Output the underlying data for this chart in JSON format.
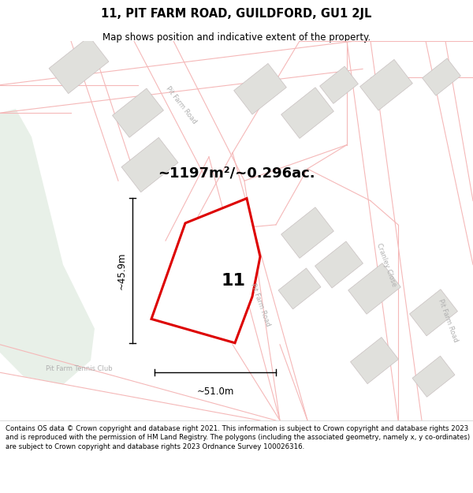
{
  "title": "11, PIT FARM ROAD, GUILDFORD, GU1 2JL",
  "subtitle": "Map shows position and indicative extent of the property.",
  "footer": "Contains OS data © Crown copyright and database right 2021. This information is subject to Crown copyright and database rights 2023 and is reproduced with the permission of HM Land Registry. The polygons (including the associated geometry, namely x, y co-ordinates) are subject to Crown copyright and database rights 2023 Ordnance Survey 100026316.",
  "area_text": "~1197m²/~0.296ac.",
  "property_number": "11",
  "dim_width": "~51.0m",
  "dim_height": "~45.9m",
  "label_tennis_club": "Pit Farm Tennis Club",
  "label_road_top": "Pit Farm Road",
  "label_road_mid": "Pit Farm Road",
  "label_cranley_close": "Cranley Close",
  "label_road_right": "Pit Farm Road",
  "bg_color": "#f8f8f5",
  "green_color": "#e8f0e8",
  "plot_fill": "#ffffff",
  "plot_edge": "#dd0000",
  "road_color": "#f5b8b8",
  "building_fill": "#e0e0dc",
  "building_edge": "#c8c0c0",
  "title_fontsize": 10.5,
  "subtitle_fontsize": 8.5,
  "footer_fontsize": 6.2,
  "area_fontsize": 13,
  "number_fontsize": 16,
  "dim_fontsize": 8.5,
  "label_fontsize": 6.0
}
